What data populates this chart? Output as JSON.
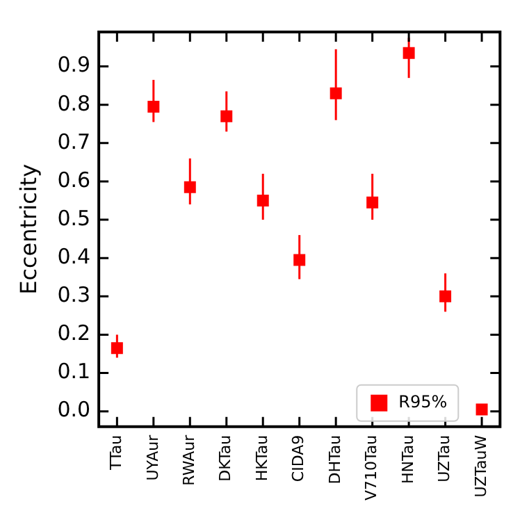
{
  "chart_data": {
    "type": "scatter",
    "ylabel": "Eccentricity",
    "categories": [
      "TTau",
      "UYAur",
      "RWAur",
      "DKTau",
      "HKTau",
      "CIDA9",
      "DHTau",
      "V710Tau",
      "HNTau",
      "UZTau",
      "UZTauW"
    ],
    "series": [
      {
        "name": "R95%",
        "color": "#ff0000",
        "values": [
          0.165,
          0.795,
          0.585,
          0.77,
          0.55,
          0.395,
          0.83,
          0.545,
          0.935,
          0.3,
          0.005
        ],
        "errors": [
          [
            0.14,
            0.2
          ],
          [
            0.755,
            0.865
          ],
          [
            0.54,
            0.66
          ],
          [
            0.73,
            0.835
          ],
          [
            0.5,
            0.62
          ],
          [
            0.345,
            0.46
          ],
          [
            0.76,
            0.945
          ],
          [
            0.5,
            0.62
          ],
          [
            0.87,
            0.975
          ],
          [
            0.26,
            0.36
          ],
          null
        ]
      }
    ],
    "ylim": [
      -0.04,
      0.99
    ],
    "yticks": [
      {
        "value": 0,
        "label": "0.0"
      },
      0.1,
      0.2,
      0.3,
      0.4,
      0.5,
      0.6,
      0.7,
      0.8,
      0.9
    ],
    "grid": false,
    "legend": "bottom right",
    "marker": "square"
  }
}
